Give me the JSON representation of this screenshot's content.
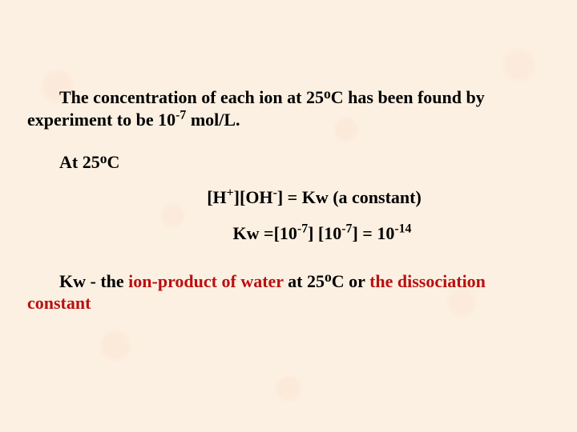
{
  "background_color": "#fcf0e2",
  "text_color": "#000000",
  "accent_color": "#b91010",
  "font_family": "Times New Roman",
  "font_weight": "bold",
  "font_size_pt": 16,
  "para1": {
    "pre": "The concentration of each ion at 25",
    "deg": "o",
    "post": "C has been found by experiment to be ",
    "val_base": "10",
    "val_exp": "-7",
    "unit": " mol/L."
  },
  "temp_line": {
    "pre": "At 25",
    "deg": "o",
    "post": "C"
  },
  "eq1": {
    "lb1": "[H",
    "sup1": "+",
    "mid1": "][OH",
    "sup2": "-",
    "mid2": "] = Kw (a constant)"
  },
  "eq2": {
    "a": "Kw =[10",
    "e1": "-7",
    "b": "] [10",
    "e2": "-7",
    "c": "] = 10",
    "e3": "-14"
  },
  "final": {
    "lead": "Kw - the ",
    "red1": "ion-product of water",
    "mid1": " at 25",
    "deg": "o",
    "mid2": "C or ",
    "red2": "the dissociation constant"
  }
}
